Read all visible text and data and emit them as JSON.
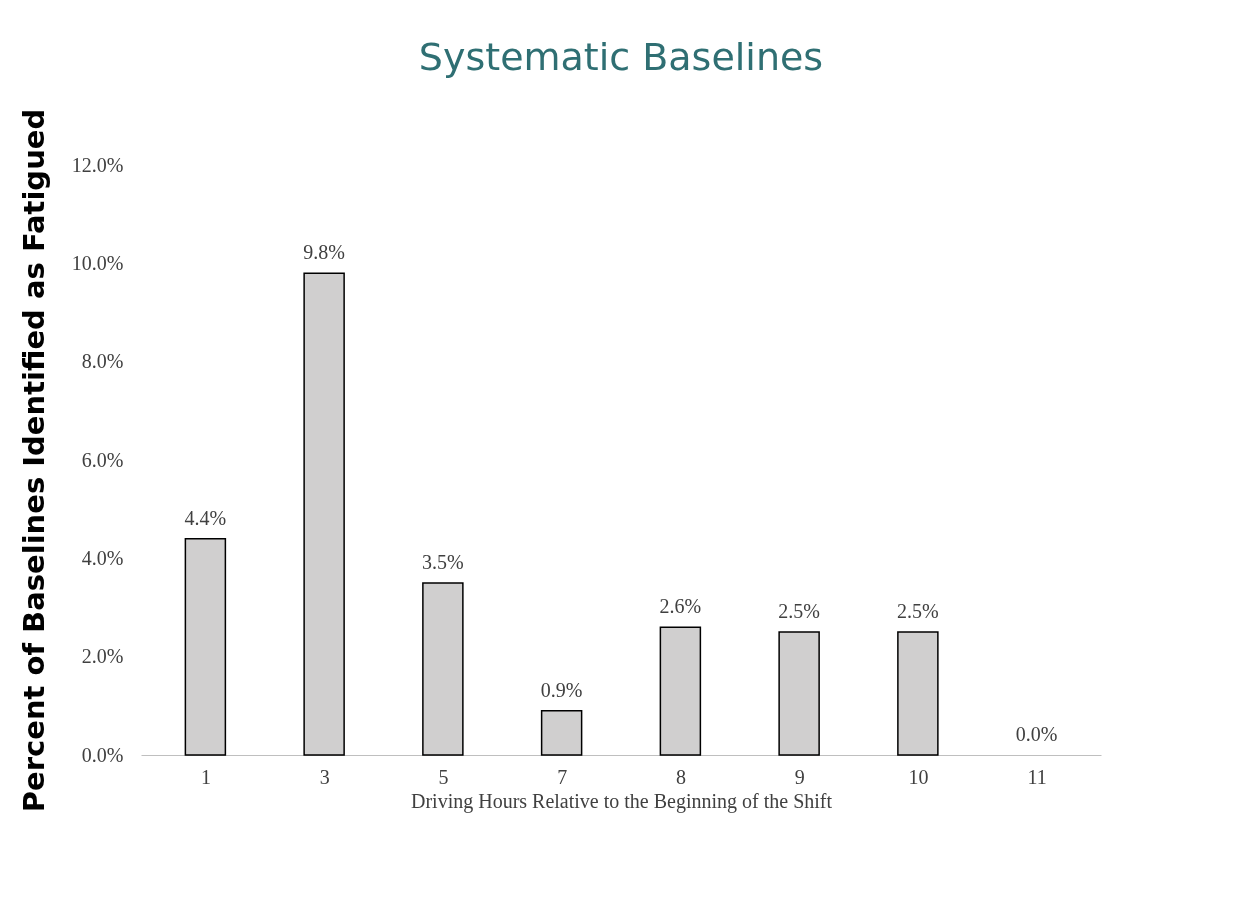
{
  "chart_data": {
    "type": "bar",
    "title": "Systematic Baselines",
    "xlabel": "Driving Hours Relative to the Beginning  of the Shift",
    "ylabel": "Percent of Baselines Identified as Fatigued",
    "categories": [
      "1",
      "3",
      "5",
      "7",
      "8",
      "9",
      "10",
      "11"
    ],
    "values": [
      4.4,
      9.8,
      3.5,
      0.9,
      2.6,
      2.5,
      2.5,
      0.0
    ],
    "value_labels": [
      "4.4%",
      "9.8%",
      "3.5%",
      "0.9%",
      "2.6%",
      "2.5%",
      "2.5%",
      "0.0%"
    ],
    "color": "#d0cfcf",
    "ylim": [
      0,
      12
    ],
    "yticks": [
      {
        "value": 0,
        "label": "0.0%"
      },
      {
        "value": 2,
        "label": "2.0%"
      },
      {
        "value": 4,
        "label": "4.0%"
      },
      {
        "value": 6,
        "label": "6.0%"
      },
      {
        "value": 8,
        "label": "8.0%"
      },
      {
        "value": 10,
        "label": "10.0%"
      },
      {
        "value": 12,
        "label": "12.0%"
      }
    ],
    "grid": false
  }
}
